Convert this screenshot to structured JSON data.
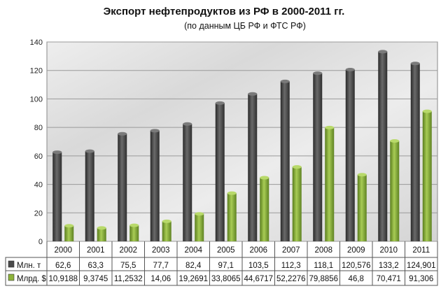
{
  "chart_data": {
    "type": "bar",
    "title": "Экспорт нефтепродуктов из РФ в 2000-2011 гг.",
    "subtitle": "(по данным ЦБ РФ и ФТС РФ)",
    "categories": [
      "2000",
      "2001",
      "2002",
      "2003",
      "2004",
      "2005",
      "2006",
      "2007",
      "2008",
      "2009",
      "2010",
      "2011"
    ],
    "series": [
      {
        "name": "Млн. т",
        "color": "#4a4a4a",
        "values": [
          62.6,
          63.3,
          75.5,
          77.7,
          82.4,
          97.1,
          103.5,
          112.3,
          118.1,
          120.576,
          133.2,
          124.901
        ],
        "labels": [
          "62,6",
          "63,3",
          "75,5",
          "77,7",
          "82,4",
          "97,1",
          "103,5",
          "112,3",
          "118,1",
          "120,576",
          "133,2",
          "124,901"
        ]
      },
      {
        "name": "Млрд. $",
        "color": "#8db33a",
        "values": [
          10.9188,
          9.3745,
          11.2532,
          14.06,
          19.2691,
          33.8065,
          44.6717,
          52.2276,
          79.8856,
          46.8,
          70.471,
          91.306
        ],
        "labels": [
          "10,9188",
          "9,3745",
          "11,2532",
          "14,06",
          "19,2691",
          "33,8065",
          "44,6717",
          "52,2276",
          "79,8856",
          "46,8",
          "70,471",
          "91,306"
        ]
      }
    ],
    "ylim": [
      0,
      140
    ],
    "yticks": [
      "0",
      "20",
      "40",
      "60",
      "80",
      "100",
      "120",
      "140"
    ],
    "grid": true,
    "legend": "data-table"
  }
}
